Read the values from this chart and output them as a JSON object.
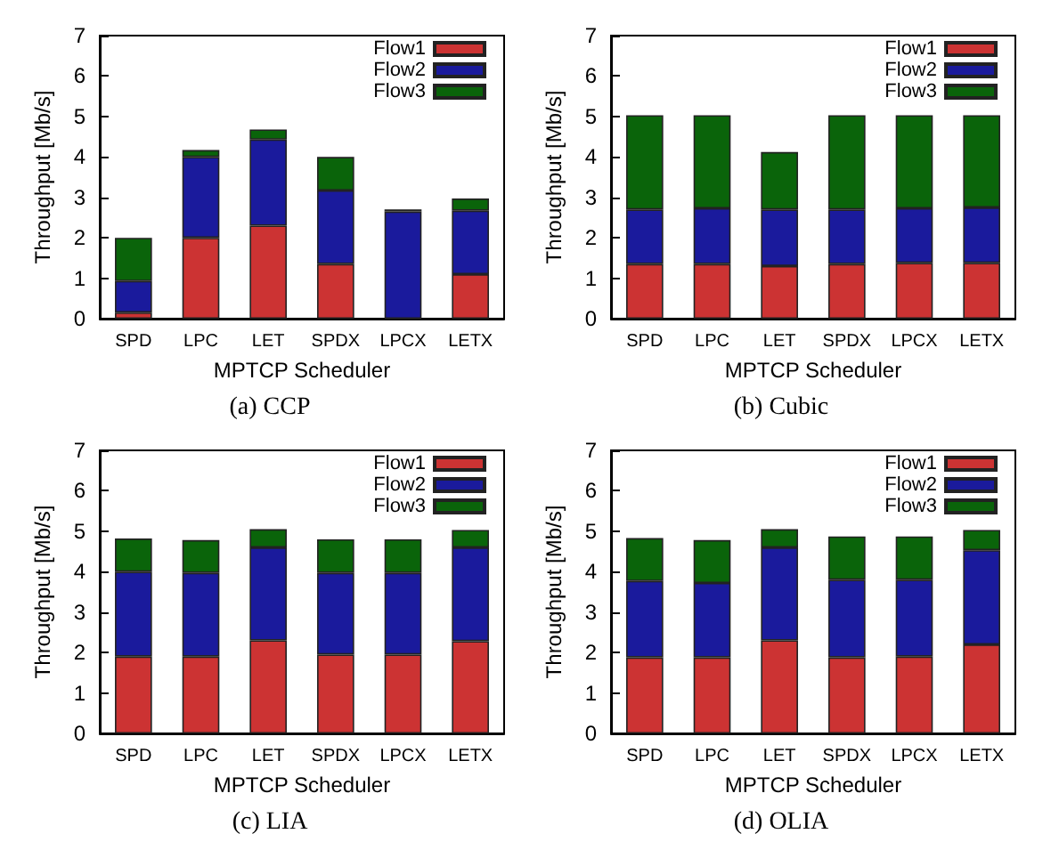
{
  "chart_data": [
    {
      "type": "bar",
      "title": "(a) CCP",
      "xlabel": "MPTCP Scheduler",
      "ylabel": "Throughput [Mb/s]",
      "categories": [
        "SPD",
        "LPC",
        "LET",
        "SPDX",
        "LPCX",
        "LETX"
      ],
      "stacked": true,
      "ylim": [
        0,
        7
      ],
      "yticks": [
        0,
        1,
        2,
        3,
        4,
        5,
        6,
        7
      ],
      "grid": false,
      "legend": "top right",
      "series": [
        {
          "name": "Flow1",
          "color": "#cc3333",
          "values": [
            0.15,
            2.0,
            2.3,
            1.35,
            0,
            1.1
          ]
        },
        {
          "name": "Flow2",
          "color": "#1a1a9c",
          "values": [
            0.78,
            2.0,
            2.13,
            1.82,
            2.65,
            1.57
          ]
        },
        {
          "name": "Flow3",
          "color": "#0a640a",
          "values": [
            1.07,
            0.17,
            0.25,
            0.83,
            0.05,
            0.3
          ]
        }
      ]
    },
    {
      "type": "bar",
      "title": "(b) Cubic",
      "xlabel": "MPTCP Scheduler",
      "ylabel": "Throughput [Mb/s]",
      "categories": [
        "SPD",
        "LPC",
        "LET",
        "SPDX",
        "LPCX",
        "LETX"
      ],
      "stacked": true,
      "ylim": [
        0,
        7
      ],
      "yticks": [
        0,
        1,
        2,
        3,
        4,
        5,
        6,
        7
      ],
      "grid": false,
      "legend": "top right",
      "series": [
        {
          "name": "Flow1",
          "color": "#cc3333",
          "values": [
            1.35,
            1.35,
            1.3,
            1.35,
            1.38,
            1.38
          ]
        },
        {
          "name": "Flow2",
          "color": "#1a1a9c",
          "values": [
            1.35,
            1.38,
            1.4,
            1.35,
            1.35,
            1.37
          ]
        },
        {
          "name": "Flow3",
          "color": "#0a640a",
          "values": [
            2.33,
            2.3,
            1.42,
            2.33,
            2.3,
            2.28
          ]
        }
      ]
    },
    {
      "type": "bar",
      "title": "(c) LIA",
      "xlabel": "MPTCP Scheduler",
      "ylabel": "Throughput [Mb/s]",
      "categories": [
        "SPD",
        "LPC",
        "LET",
        "SPDX",
        "LPCX",
        "LETX"
      ],
      "stacked": true,
      "ylim": [
        0,
        7
      ],
      "yticks": [
        0,
        1,
        2,
        3,
        4,
        5,
        6,
        7
      ],
      "grid": false,
      "legend": "top right",
      "series": [
        {
          "name": "Flow1",
          "color": "#cc3333",
          "values": [
            1.9,
            1.9,
            2.3,
            1.95,
            1.95,
            2.28
          ]
        },
        {
          "name": "Flow2",
          "color": "#1a1a9c",
          "values": [
            2.1,
            2.07,
            2.3,
            2.02,
            2.02,
            2.32
          ]
        },
        {
          "name": "Flow3",
          "color": "#0a640a",
          "values": [
            0.82,
            0.81,
            0.45,
            0.83,
            0.83,
            0.43
          ]
        }
      ]
    },
    {
      "type": "bar",
      "title": "(d) OLIA",
      "xlabel": "MPTCP Scheduler",
      "ylabel": "Throughput [Mb/s]",
      "categories": [
        "SPD",
        "LPC",
        "LET",
        "SPDX",
        "LPCX",
        "LETX"
      ],
      "stacked": true,
      "ylim": [
        0,
        7
      ],
      "yticks": [
        0,
        1,
        2,
        3,
        4,
        5,
        6,
        7
      ],
      "grid": false,
      "legend": "top right",
      "series": [
        {
          "name": "Flow1",
          "color": "#cc3333",
          "values": [
            1.88,
            1.88,
            2.3,
            1.88,
            1.9,
            2.2
          ]
        },
        {
          "name": "Flow2",
          "color": "#1a1a9c",
          "values": [
            1.89,
            1.84,
            2.3,
            1.92,
            1.9,
            2.33
          ]
        },
        {
          "name": "Flow3",
          "color": "#0a640a",
          "values": [
            1.06,
            1.06,
            0.45,
            1.07,
            1.07,
            0.5
          ]
        }
      ]
    }
  ]
}
